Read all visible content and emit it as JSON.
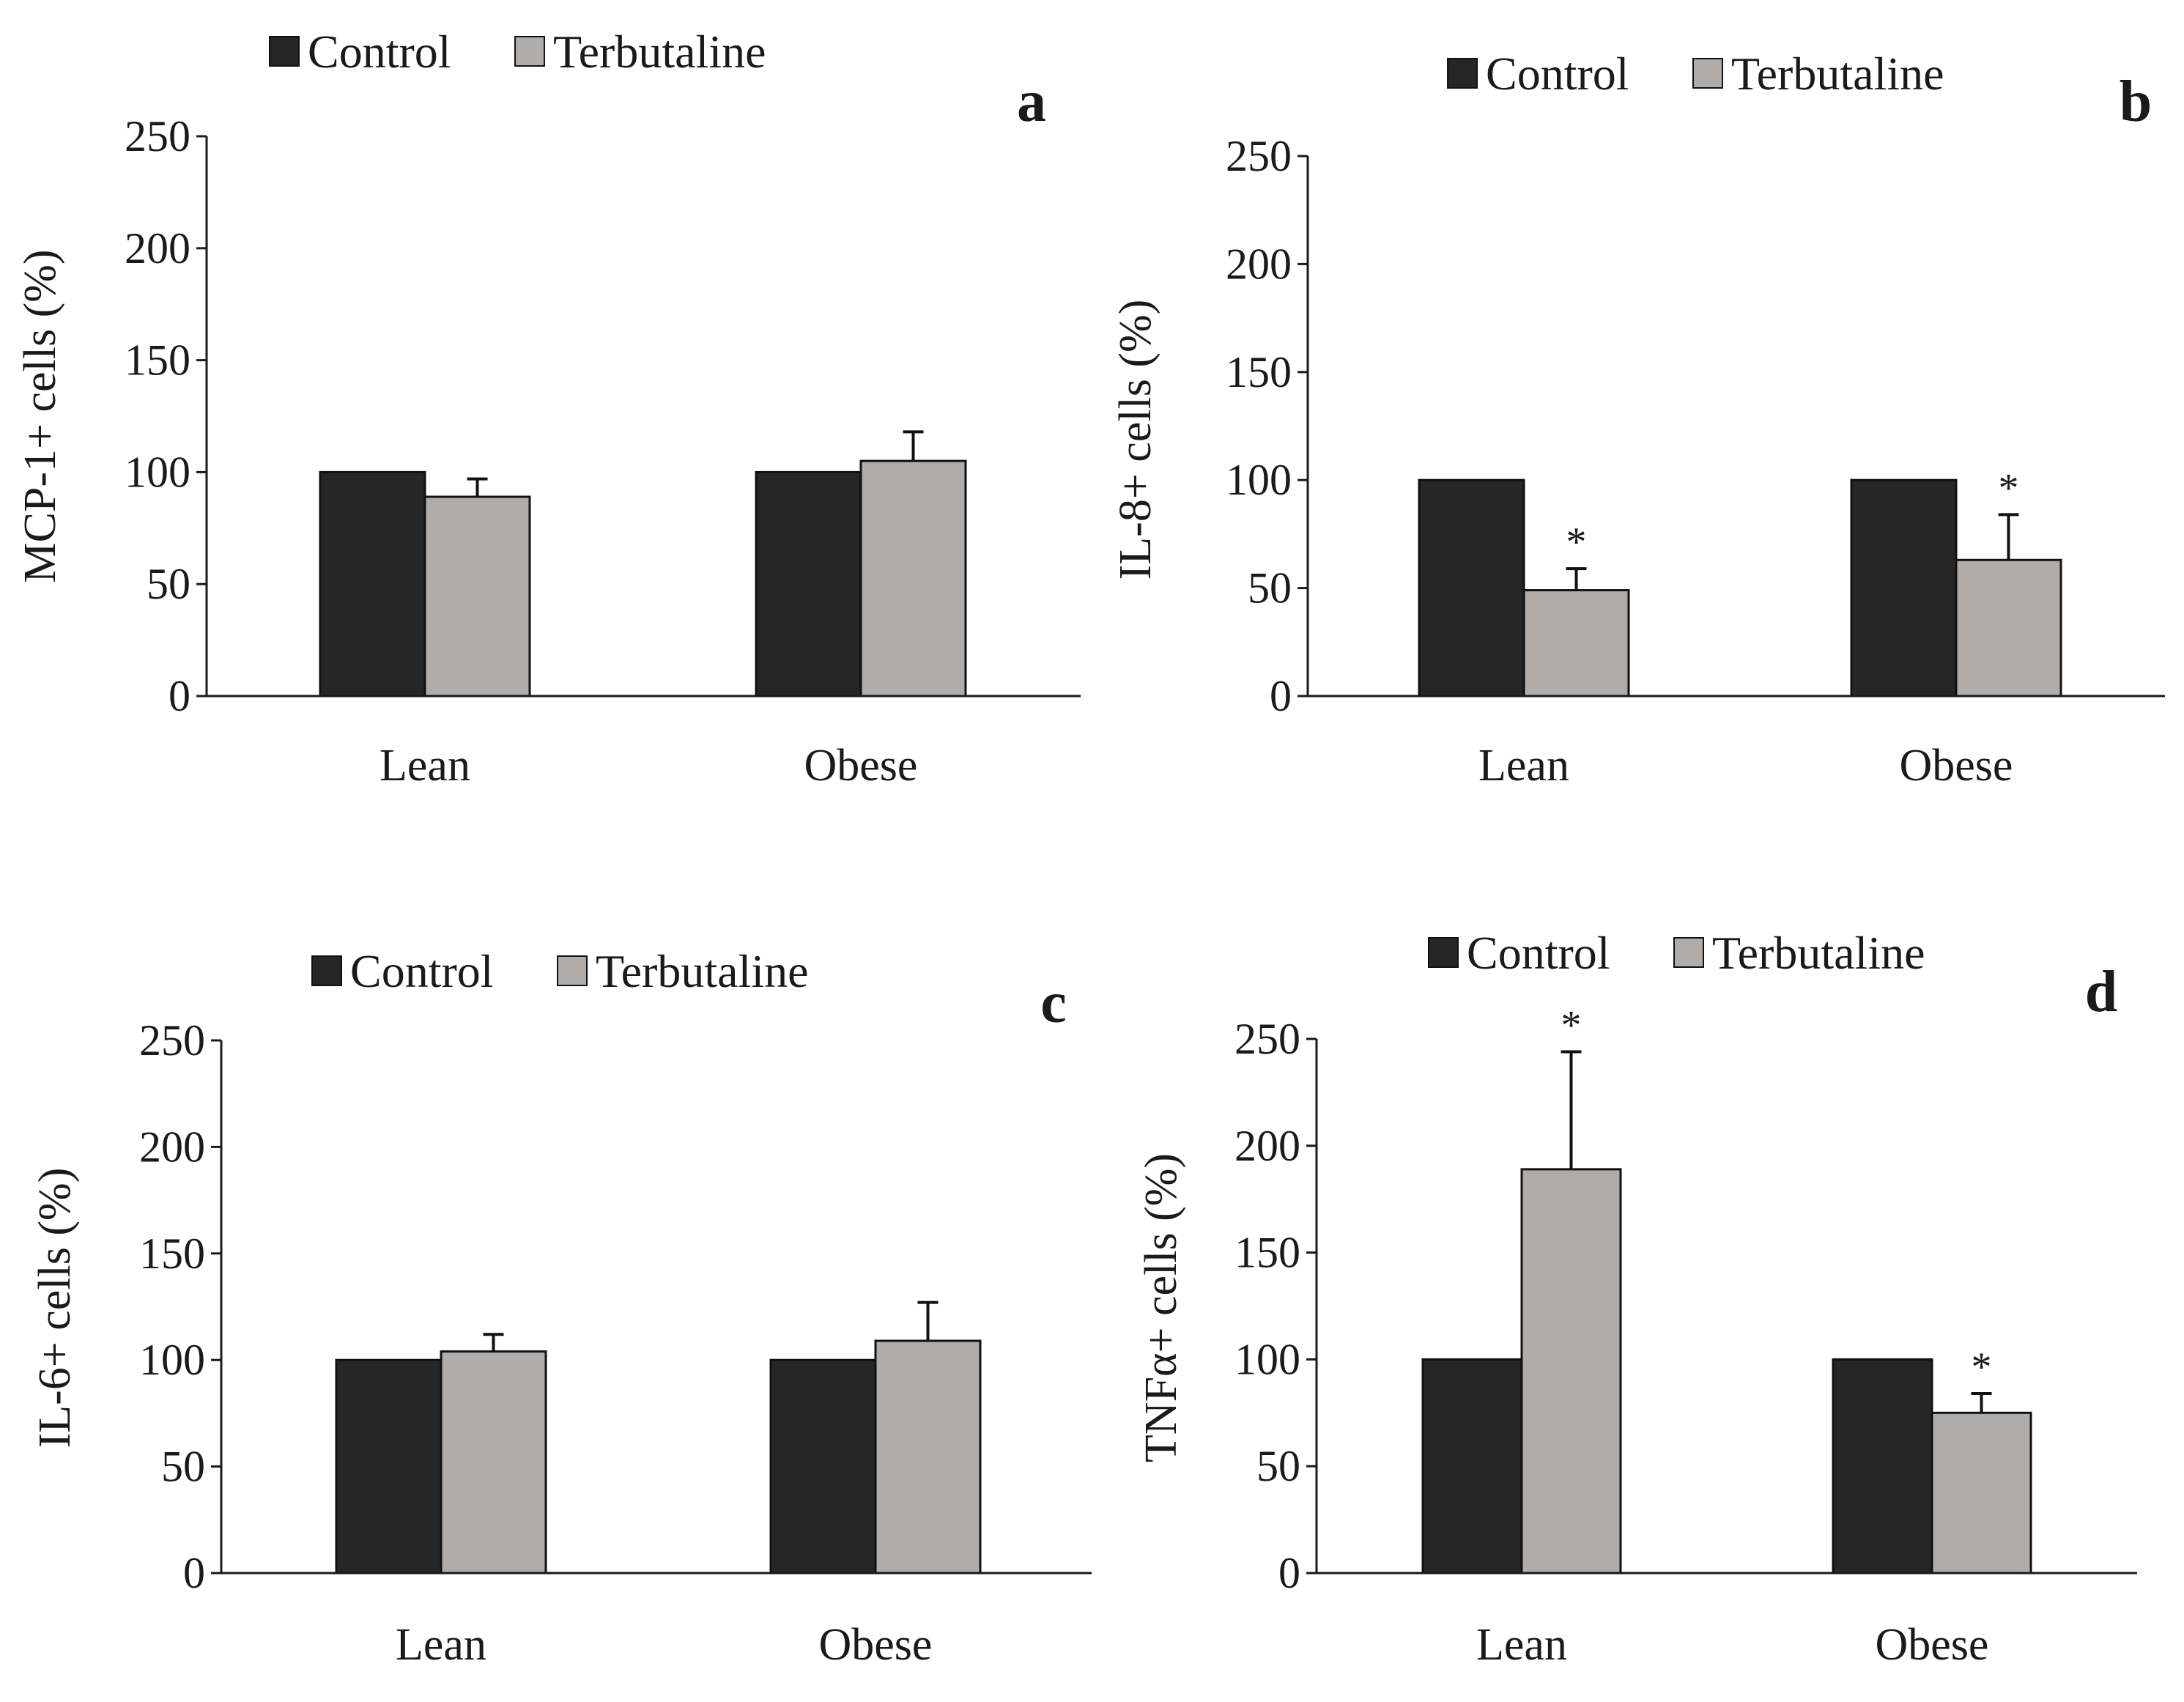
{
  "figure": {
    "legend_labels": [
      "Control",
      "Terbutaline"
    ],
    "colors": {
      "control": "#262626",
      "terbutaline": "#b0aca9",
      "axis": "#1a1a1a",
      "background": "#ffffff"
    }
  },
  "chart_data": [
    {
      "panel": "a",
      "type": "bar",
      "categories": [
        "Lean",
        "Obese"
      ],
      "series": [
        {
          "name": "Control",
          "values": [
            100,
            100
          ],
          "errors": [
            0,
            0
          ]
        },
        {
          "name": "Terbutaline",
          "values": [
            89,
            105
          ],
          "errors": [
            8,
            13
          ]
        }
      ],
      "significance": [
        [
          "",
          ""
        ],
        [
          "",
          ""
        ]
      ],
      "ylabel": "MCP-1+ cells (%)",
      "yticks": [
        0,
        50,
        100,
        150,
        200,
        250
      ],
      "ylim": [
        0,
        250
      ],
      "legend": [
        "Control",
        "Terbutaline"
      ]
    },
    {
      "panel": "b",
      "type": "bar",
      "categories": [
        "Lean",
        "Obese"
      ],
      "series": [
        {
          "name": "Control",
          "values": [
            100,
            100
          ],
          "errors": [
            0,
            0
          ]
        },
        {
          "name": "Terbutaline",
          "values": [
            49,
            63
          ],
          "errors": [
            10,
            21
          ]
        }
      ],
      "significance": [
        [
          "",
          ""
        ],
        [
          "*",
          "*"
        ]
      ],
      "ylabel": "IL-8+ cells (%)",
      "yticks": [
        0,
        50,
        100,
        150,
        200,
        250
      ],
      "ylim": [
        0,
        250
      ],
      "legend": [
        "Control",
        "Terbutaline"
      ]
    },
    {
      "panel": "c",
      "type": "bar",
      "categories": [
        "Lean",
        "Obese"
      ],
      "series": [
        {
          "name": "Control",
          "values": [
            100,
            100
          ],
          "errors": [
            0,
            0
          ]
        },
        {
          "name": "Terbutaline",
          "values": [
            104,
            109
          ],
          "errors": [
            8,
            18
          ]
        }
      ],
      "significance": [
        [
          "",
          ""
        ],
        [
          "",
          ""
        ]
      ],
      "ylabel": "IL-6+ cells (%)",
      "yticks": [
        0,
        50,
        100,
        150,
        200,
        250
      ],
      "ylim": [
        0,
        250
      ],
      "legend": [
        "Control",
        "Terbutaline"
      ]
    },
    {
      "panel": "d",
      "type": "bar",
      "categories": [
        "Lean",
        "Obese"
      ],
      "series": [
        {
          "name": "Control",
          "values": [
            100,
            100
          ],
          "errors": [
            0,
            0
          ]
        },
        {
          "name": "Terbutaline",
          "values": [
            189,
            75
          ],
          "errors": [
            55,
            9
          ]
        }
      ],
      "significance": [
        [
          "",
          ""
        ],
        [
          "*",
          "*"
        ]
      ],
      "ylabel": "TNFα+ cells (%)",
      "yticks": [
        0,
        50,
        100,
        150,
        200,
        250
      ],
      "ylim": [
        0,
        250
      ],
      "legend": [
        "Control",
        "Terbutaline"
      ]
    }
  ]
}
